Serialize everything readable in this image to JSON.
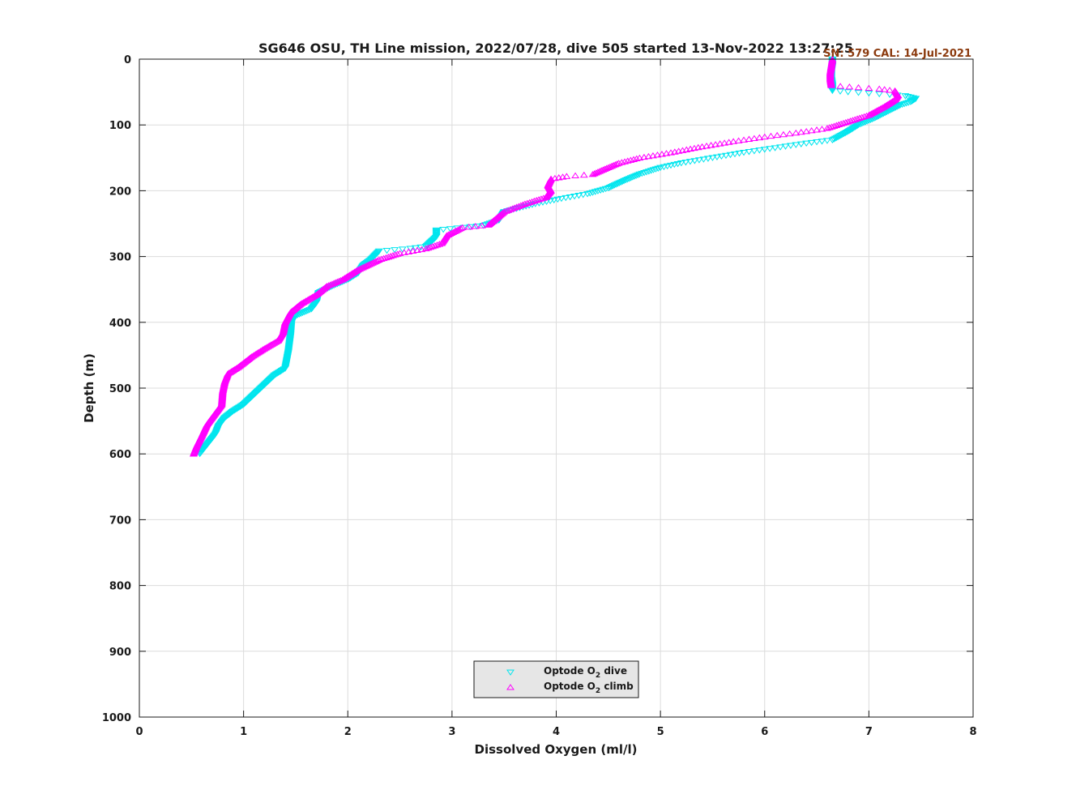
{
  "chart_data": {
    "type": "scatter",
    "title": "SG646 OSU, TH Line mission, 2022/07/28, dive 505 started 13-Nov-2022 13:27:25",
    "calibration_note": "SN: 579  CAL: 14-Jul-2021",
    "xlabel": "Dissolved Oxygen (ml/l)",
    "ylabel": "Depth (m)",
    "xlim": [
      0,
      8
    ],
    "ylim": [
      0,
      1000
    ],
    "y_reversed": true,
    "grid": true,
    "legend_position": "bottom-center",
    "x_ticks": [
      "0",
      "1",
      "2",
      "3",
      "4",
      "5",
      "6",
      "7",
      "8"
    ],
    "y_ticks": [
      "0",
      "100",
      "200",
      "300",
      "400",
      "500",
      "600",
      "700",
      "800",
      "900",
      "1000"
    ],
    "series": [
      {
        "name_prefix": "Optode O",
        "name_sub": "2",
        "name_suffix": " dive",
        "marker": "triangle-down",
        "color": "#00e5ee",
        "points": [
          [
            6.65,
            0
          ],
          [
            6.65,
            10
          ],
          [
            6.64,
            20
          ],
          [
            6.64,
            30
          ],
          [
            6.65,
            40
          ],
          [
            6.65,
            48
          ],
          [
            6.8,
            50
          ],
          [
            7.0,
            52
          ],
          [
            7.2,
            54
          ],
          [
            7.35,
            56
          ],
          [
            7.45,
            60
          ],
          [
            7.4,
            65
          ],
          [
            7.3,
            70
          ],
          [
            7.2,
            78
          ],
          [
            7.05,
            90
          ],
          [
            6.9,
            100
          ],
          [
            6.8,
            110
          ],
          [
            6.65,
            123
          ],
          [
            6.4,
            128
          ],
          [
            6.1,
            135
          ],
          [
            5.8,
            142
          ],
          [
            5.5,
            150
          ],
          [
            5.2,
            158
          ],
          [
            5.0,
            165
          ],
          [
            4.8,
            175
          ],
          [
            4.65,
            185
          ],
          [
            4.5,
            196
          ],
          [
            4.3,
            205
          ],
          [
            4.05,
            212
          ],
          [
            3.8,
            220
          ],
          [
            3.5,
            232
          ],
          [
            3.45,
            245
          ],
          [
            3.3,
            253
          ],
          [
            3.05,
            257
          ],
          [
            2.85,
            260
          ],
          [
            2.85,
            270
          ],
          [
            2.75,
            285
          ],
          [
            2.6,
            288
          ],
          [
            2.3,
            292
          ],
          [
            2.22,
            305
          ],
          [
            2.15,
            313
          ],
          [
            2.1,
            325
          ],
          [
            2.0,
            335
          ],
          [
            1.85,
            345
          ],
          [
            1.72,
            355
          ],
          [
            1.7,
            370
          ],
          [
            1.65,
            380
          ],
          [
            1.5,
            390
          ],
          [
            1.46,
            400
          ],
          [
            1.45,
            420
          ],
          [
            1.43,
            445
          ],
          [
            1.4,
            470
          ],
          [
            1.3,
            480
          ],
          [
            1.2,
            495
          ],
          [
            1.1,
            510
          ],
          [
            1.0,
            525
          ],
          [
            0.9,
            535
          ],
          [
            0.82,
            545
          ],
          [
            0.76,
            558
          ],
          [
            0.73,
            570
          ],
          [
            0.68,
            580
          ],
          [
            0.63,
            590
          ],
          [
            0.58,
            600
          ]
        ]
      },
      {
        "name_prefix": "Optode O",
        "name_sub": "2",
        "name_suffix": " climb",
        "marker": "triangle-up",
        "color": "#ff00ff",
        "points": [
          [
            6.65,
            0
          ],
          [
            6.64,
            10
          ],
          [
            6.63,
            20
          ],
          [
            6.63,
            30
          ],
          [
            6.64,
            40
          ],
          [
            6.9,
            43
          ],
          [
            7.1,
            45
          ],
          [
            7.25,
            48
          ],
          [
            7.28,
            55
          ],
          [
            7.25,
            62
          ],
          [
            7.15,
            72
          ],
          [
            7.0,
            85
          ],
          [
            6.8,
            95
          ],
          [
            6.6,
            105
          ],
          [
            6.3,
            112
          ],
          [
            6.0,
            118
          ],
          [
            5.7,
            125
          ],
          [
            5.4,
            133
          ],
          [
            5.1,
            142
          ],
          [
            4.8,
            150
          ],
          [
            4.6,
            158
          ],
          [
            4.45,
            168
          ],
          [
            4.35,
            175
          ],
          [
            4.1,
            178
          ],
          [
            3.95,
            182
          ],
          [
            3.92,
            192
          ],
          [
            3.95,
            200
          ],
          [
            3.9,
            210
          ],
          [
            3.7,
            220
          ],
          [
            3.5,
            232
          ],
          [
            3.35,
            252
          ],
          [
            3.1,
            256
          ],
          [
            2.95,
            268
          ],
          [
            2.9,
            280
          ],
          [
            2.75,
            288
          ],
          [
            2.5,
            295
          ],
          [
            2.3,
            305
          ],
          [
            2.1,
            320
          ],
          [
            1.95,
            335
          ],
          [
            1.8,
            345
          ],
          [
            1.7,
            358
          ],
          [
            1.55,
            372
          ],
          [
            1.45,
            385
          ],
          [
            1.4,
            400
          ],
          [
            1.38,
            415
          ],
          [
            1.33,
            428
          ],
          [
            1.2,
            440
          ],
          [
            1.08,
            452
          ],
          [
            0.95,
            468
          ],
          [
            0.85,
            478
          ],
          [
            0.82,
            490
          ],
          [
            0.8,
            505
          ],
          [
            0.79,
            525
          ],
          [
            0.72,
            540
          ],
          [
            0.65,
            555
          ],
          [
            0.6,
            572
          ],
          [
            0.55,
            588
          ],
          [
            0.52,
            600
          ]
        ]
      }
    ]
  }
}
